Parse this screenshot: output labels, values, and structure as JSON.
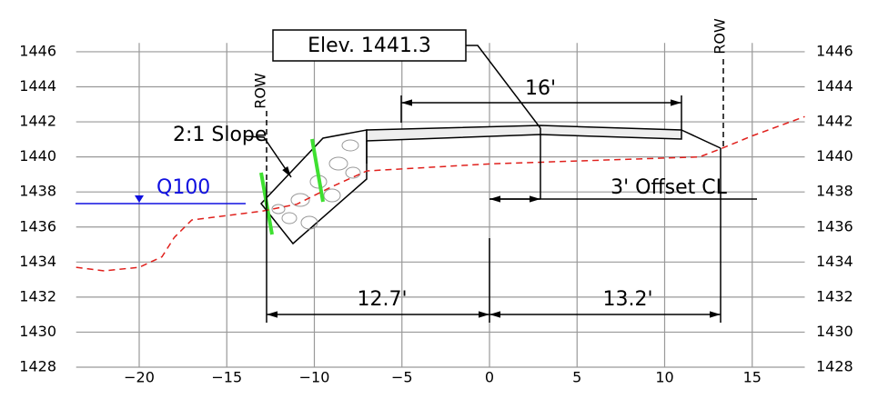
{
  "chart_data": {
    "type": "line",
    "xlim": [
      -23.6,
      18
    ],
    "ylim": [
      1428,
      1446.5
    ],
    "xticks": [
      {
        "value": -20,
        "label": "−20"
      },
      {
        "value": -15,
        "label": "−15"
      },
      {
        "value": -10,
        "label": "−10"
      },
      {
        "value": -5,
        "label": "−5"
      },
      0,
      5,
      10,
      15
    ],
    "yticks": [
      1428,
      1430,
      1432,
      1434,
      1436,
      1438,
      1440,
      1442,
      1444,
      1446
    ],
    "grid": true,
    "series": [
      {
        "color": "#e0201c",
        "x": [
          -23.6,
          -22,
          -20,
          -18.7,
          -18,
          -17,
          -13,
          -11,
          -9,
          -7,
          0,
          12,
          13.3,
          15,
          18
        ],
        "values": [
          1433.7,
          1433.5,
          1433.7,
          1434.3,
          1435.4,
          1436.4,
          1436.9,
          1437.3,
          1438.3,
          1439.2,
          1439.6,
          1440.0,
          1440.5,
          1441.2,
          1442.3
        ]
      }
    ],
    "annotations": [
      "Elev. 1441.3",
      "16'",
      "ROW",
      "ROW",
      "2:1 Slope",
      "Q100",
      "3' Offset CL",
      "12.7'",
      "13.2'"
    ]
  }
}
